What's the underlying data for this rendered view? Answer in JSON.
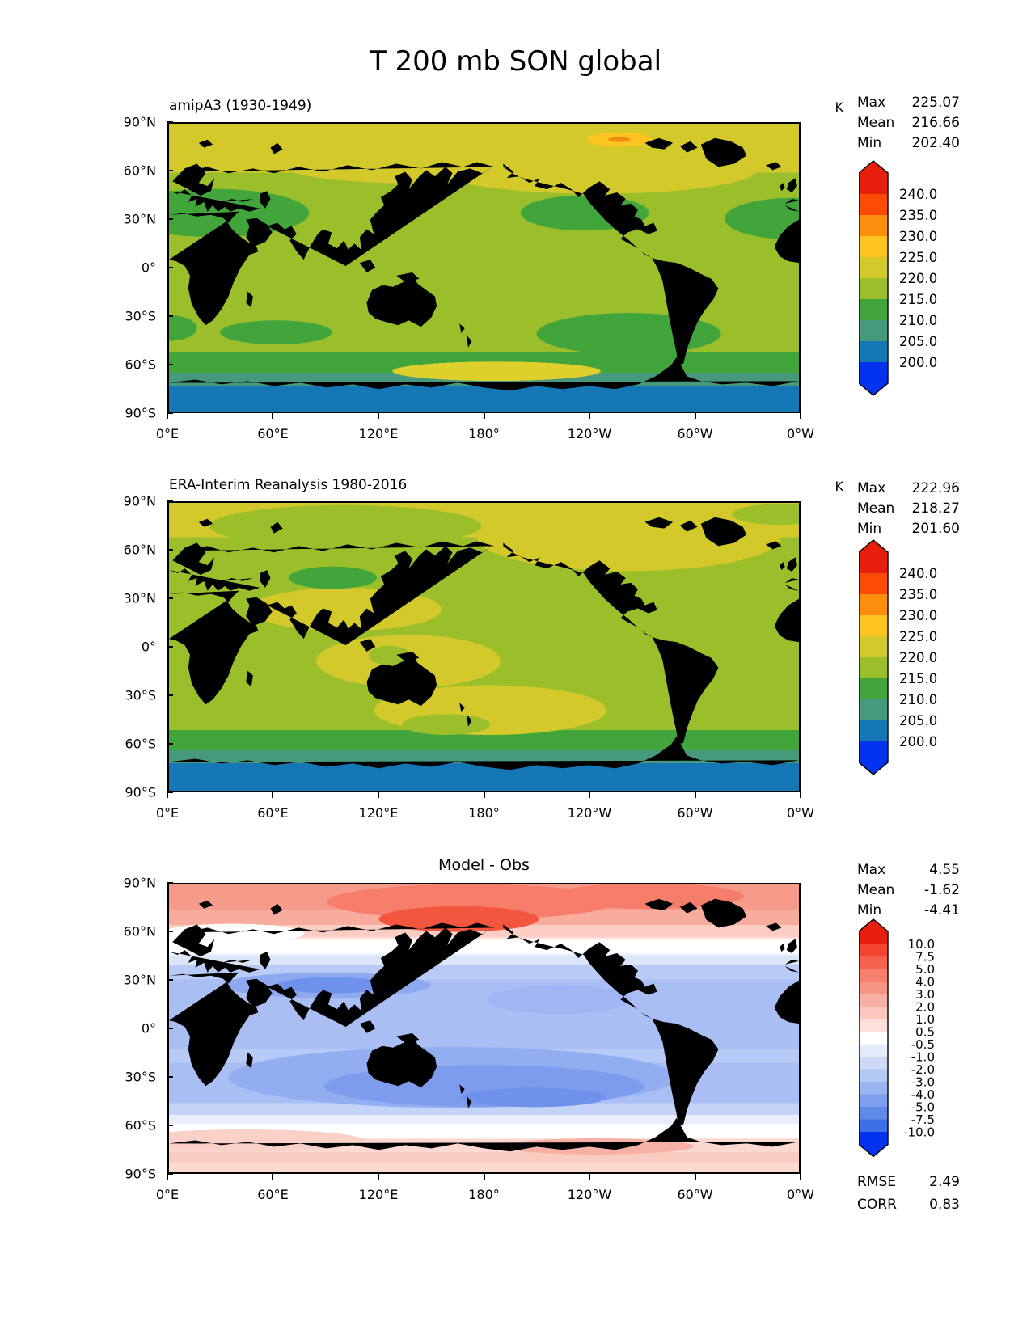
{
  "figure_title": "T 200 mb SON global",
  "chart_data": [
    {
      "type": "filled_contour_map",
      "title": "amipA3 (1930-1949)",
      "units": "K",
      "stats": [
        [
          "Max",
          "225.07"
        ],
        [
          "Mean",
          "216.66"
        ],
        [
          "Min",
          "202.40"
        ]
      ],
      "colorbar": {
        "levels": [
          "240.0",
          "235.0",
          "230.0",
          "225.0",
          "220.0",
          "215.0",
          "210.0",
          "205.0",
          "200.0"
        ],
        "colors": [
          "#e81e0c",
          "#fb4b07",
          "#fd8d0c",
          "#fdc41f",
          "#d3c92b",
          "#9abf2b",
          "#41a53c",
          "#47997b",
          "#1577b4",
          "#0433f0"
        ],
        "extend": "both"
      },
      "x_ticks": [
        "0°E",
        "60°E",
        "120°E",
        "180°",
        "120°W",
        "60°W",
        "0°W"
      ],
      "y_ticks": [
        "90°N",
        "60°N",
        "30°N",
        "0°",
        "30°S",
        "60°S",
        "90°S"
      ]
    },
    {
      "type": "filled_contour_map",
      "title": "ERA-Interim Reanalysis 1980-2016",
      "units": "K",
      "stats": [
        [
          "Max",
          "222.96"
        ],
        [
          "Mean",
          "218.27"
        ],
        [
          "Min",
          "201.60"
        ]
      ],
      "colorbar": {
        "levels": [
          "240.0",
          "235.0",
          "230.0",
          "225.0",
          "220.0",
          "215.0",
          "210.0",
          "205.0",
          "200.0"
        ],
        "colors": [
          "#e81e0c",
          "#fb4b07",
          "#fd8d0c",
          "#fdc41f",
          "#d3c92b",
          "#9abf2b",
          "#41a53c",
          "#47997b",
          "#1577b4",
          "#0433f0"
        ],
        "extend": "both"
      },
      "x_ticks": [
        "0°E",
        "60°E",
        "120°E",
        "180°",
        "120°W",
        "60°W",
        "0°W"
      ],
      "y_ticks": [
        "90°N",
        "60°N",
        "30°N",
        "0°",
        "30°S",
        "60°S",
        "90°S"
      ]
    },
    {
      "type": "filled_contour_map",
      "title": "Model - Obs",
      "units": "",
      "stats": [
        [
          "Max",
          "4.55"
        ],
        [
          "Mean",
          "-1.62"
        ],
        [
          "Min",
          "-4.41"
        ]
      ],
      "extra_stats": [
        [
          "RMSE",
          "2.49"
        ],
        [
          "CORR",
          "0.83"
        ]
      ],
      "colorbar": {
        "levels": [
          "10.0",
          "7.5",
          "5.0",
          "4.0",
          "3.0",
          "2.0",
          "1.0",
          "0.5",
          "-0.5",
          "-1.0",
          "-2.0",
          "-3.0",
          "-4.0",
          "-5.0",
          "-7.5",
          "-10.0"
        ],
        "colors": [
          "#e81e0c",
          "#f4432e",
          "#f4614c",
          "#f67f6d",
          "#f79585",
          "#f9b0a4",
          "#fbc7be",
          "#fdded8",
          "#ffffff",
          "#e4ebfb",
          "#ccdaf8",
          "#b3c8f5",
          "#98b4f1",
          "#7e9fee",
          "#6089ea",
          "#3f6fe6",
          "#0433f0"
        ],
        "extend": "both"
      },
      "x_ticks": [
        "0°E",
        "60°E",
        "120°E",
        "180°",
        "120°W",
        "60°W",
        "0°W"
      ],
      "y_ticks": [
        "90°N",
        "60°N",
        "30°N",
        "0°",
        "30°S",
        "60°S",
        "90°S"
      ]
    }
  ]
}
